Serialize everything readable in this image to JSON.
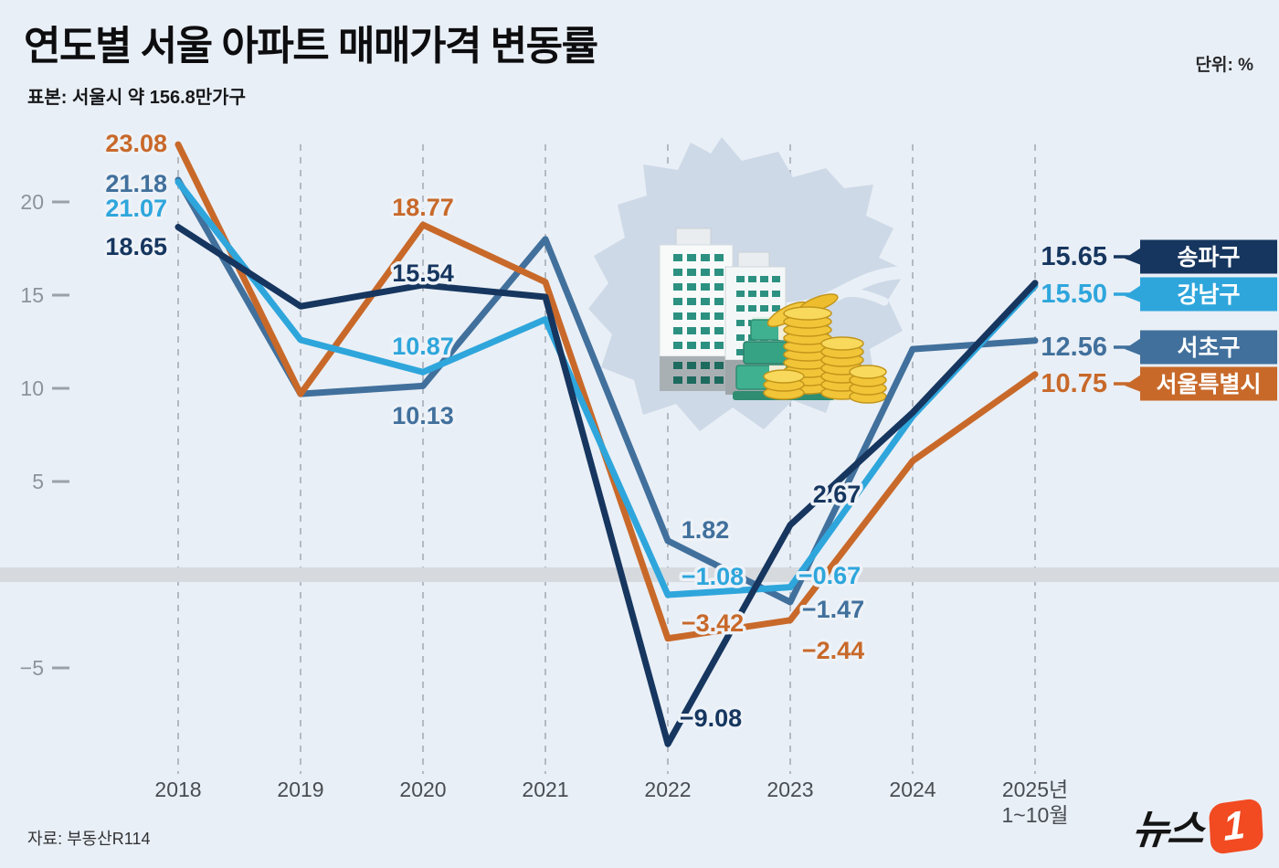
{
  "header": {
    "title": "연도별 서울 아파트 매매가격 변동률",
    "subtitle": "표본: 서울시 약 156.8만가구",
    "unit_label": "단위: %"
  },
  "footer": {
    "source": "자료: 부동산R114",
    "logo_text": "뉴스",
    "logo_badge": "1"
  },
  "chart_data": {
    "type": "line",
    "title": "연도별 서울 아파트 매매가격 변동률",
    "unit": "%",
    "x_labels": [
      "2018",
      "2019",
      "2020",
      "2021",
      "2022",
      "2023",
      "2024",
      "2025년|1~10월"
    ],
    "y_ticks": [
      20,
      15,
      10,
      5,
      -5
    ],
    "ylim": [
      -10.5,
      24.5
    ],
    "zero_baseline_band": true,
    "grid": "vertical-dashed",
    "legend_position": "right",
    "colors": {
      "background": "#e9eff6",
      "gridline": "#b3bac3",
      "zero_band": "#d6dade",
      "logo_accent": "#f24a21"
    },
    "series": [
      {
        "key": "songpa",
        "name": "송파구",
        "color": "#16365f",
        "values": [
          18.65,
          14.4,
          15.54,
          14.9,
          -9.08,
          2.67,
          8.7,
          15.65
        ],
        "labels": {
          "2018": "18.65",
          "2020": "15.54",
          "2022": "−9.08",
          "2023": "2.67",
          "2025": "15.65"
        }
      },
      {
        "key": "gangnam",
        "name": "강남구",
        "color": "#2ea6dc",
        "values": [
          21.07,
          12.6,
          10.87,
          13.7,
          -1.08,
          -0.67,
          8.5,
          15.5
        ],
        "labels": {
          "2018": "21.07",
          "2020": "10.87",
          "2022": "−1.08",
          "2023": "−0.67",
          "2025": "15.50"
        }
      },
      {
        "key": "seocho",
        "name": "서초구",
        "color": "#41709c",
        "values": [
          21.18,
          9.7,
          10.13,
          18.0,
          1.82,
          -1.47,
          12.1,
          12.56
        ],
        "labels": {
          "2018": "21.18",
          "2020": "10.13",
          "2022": "1.82",
          "2023": "−1.47",
          "2025": "12.56"
        }
      },
      {
        "key": "seoul",
        "name": "서울특별시",
        "color": "#c8692a",
        "values": [
          23.08,
          9.7,
          18.77,
          15.7,
          -3.42,
          -2.44,
          6.1,
          10.75
        ],
        "labels": {
          "2018": "23.08",
          "2020": "18.77",
          "2022": "−3.42",
          "2023": "−2.44",
          "2025": "10.75"
        }
      }
    ],
    "estimated_years": [
      "2019",
      "2021",
      "2024"
    ]
  }
}
